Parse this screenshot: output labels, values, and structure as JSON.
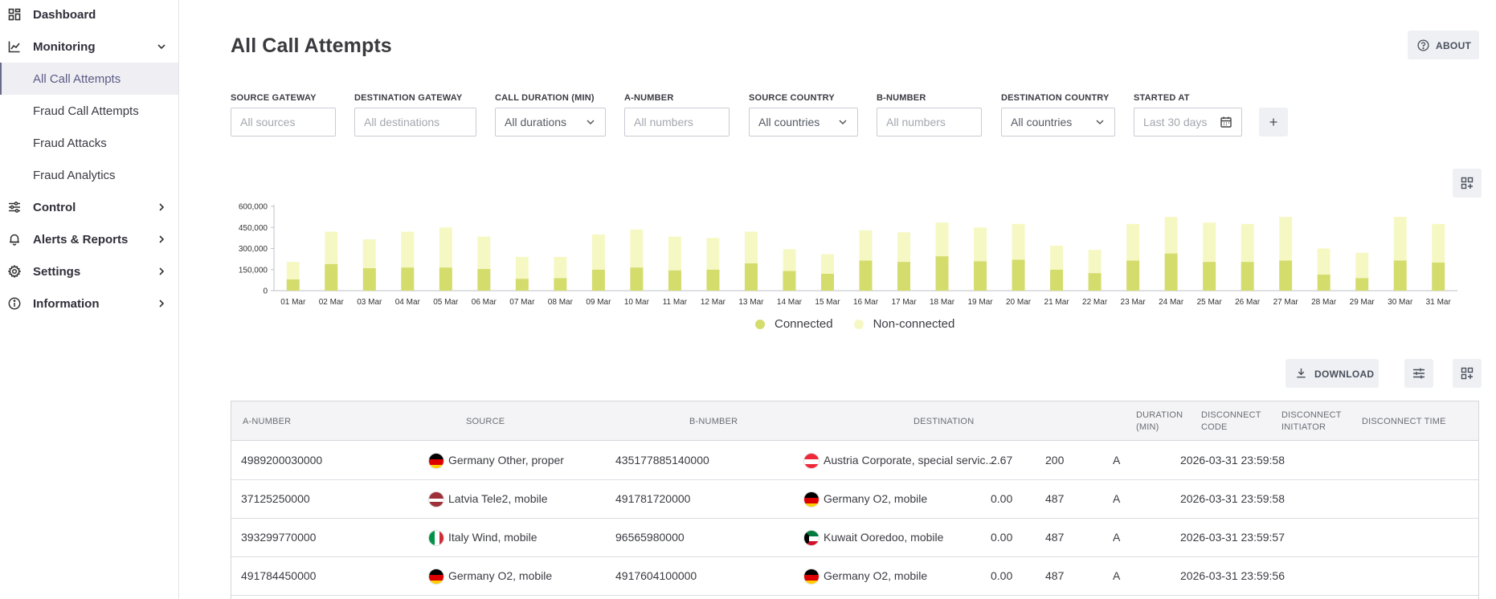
{
  "sidebar": {
    "items": [
      {
        "label": "Dashboard",
        "icon": "dashboard-icon"
      },
      {
        "label": "Monitoring",
        "icon": "monitoring-icon",
        "expanded": true,
        "children": [
          "All Call Attempts",
          "Fraud Call Attempts",
          "Fraud Attacks",
          "Fraud Analytics"
        ],
        "active_child": "All Call Attempts"
      },
      {
        "label": "Control",
        "icon": "sliders-icon"
      },
      {
        "label": "Alerts & Reports",
        "icon": "bell-icon"
      },
      {
        "label": "Settings",
        "icon": "gear-icon"
      },
      {
        "label": "Information",
        "icon": "info-icon"
      }
    ]
  },
  "header": {
    "title": "All Call Attempts",
    "about_label": "ABOUT"
  },
  "filters": {
    "source_gateway": {
      "label": "SOURCE GATEWAY",
      "placeholder": "All sources"
    },
    "destination_gateway": {
      "label": "DESTINATION GATEWAY",
      "placeholder": "All destinations"
    },
    "call_duration": {
      "label": "CALL DURATION (MIN)",
      "value": "All durations"
    },
    "a_number": {
      "label": "A-NUMBER",
      "placeholder": "All numbers"
    },
    "source_country": {
      "label": "SOURCE COUNTRY",
      "value": "All countries"
    },
    "b_number": {
      "label": "B-NUMBER",
      "placeholder": "All numbers"
    },
    "destination_country": {
      "label": "DESTINATION COUNTRY",
      "value": "All countries"
    },
    "started_at": {
      "label": "STARTED AT",
      "value": "Last 30 days"
    }
  },
  "chart_data": {
    "type": "bar",
    "stacked": true,
    "categories": [
      "01 Mar",
      "02 Mar",
      "03 Mar",
      "04 Mar",
      "05 Mar",
      "06 Mar",
      "07 Mar",
      "08 Mar",
      "09 Mar",
      "10 Mar",
      "11 Mar",
      "12 Mar",
      "13 Mar",
      "14 Mar",
      "15 Mar",
      "16 Mar",
      "17 Mar",
      "18 Mar",
      "19 Mar",
      "20 Mar",
      "21 Mar",
      "22 Mar",
      "23 Mar",
      "24 Mar",
      "25 Mar",
      "26 Mar",
      "27 Mar",
      "28 Mar",
      "29 Mar",
      "30 Mar",
      "31 Mar"
    ],
    "series": [
      {
        "name": "Connected",
        "color": "#d4dc6c",
        "values": [
          80000,
          190000,
          160000,
          165000,
          165000,
          155000,
          85000,
          90000,
          150000,
          165000,
          145000,
          150000,
          195000,
          140000,
          120000,
          215000,
          205000,
          245000,
          210000,
          220000,
          150000,
          125000,
          215000,
          265000,
          205000,
          205000,
          215000,
          115000,
          90000,
          215000,
          200000
        ]
      },
      {
        "name": "Non-connected",
        "color": "#f6f8c4",
        "values": [
          125000,
          230000,
          205000,
          255000,
          285000,
          230000,
          155000,
          150000,
          250000,
          270000,
          240000,
          225000,
          225000,
          155000,
          140000,
          215000,
          210000,
          240000,
          240000,
          255000,
          170000,
          165000,
          260000,
          260000,
          280000,
          270000,
          310000,
          185000,
          180000,
          310000,
          275000
        ]
      }
    ],
    "yticks": [
      "0",
      "150,000",
      "300,000",
      "450,000",
      "600,000"
    ],
    "ylim": [
      0,
      600000
    ],
    "legend_position": "bottom-center",
    "grid": false
  },
  "toolbar": {
    "download_label": "DOWNLOAD"
  },
  "table": {
    "columns": [
      "A-NUMBER",
      "SOURCE",
      "B-NUMBER",
      "DESTINATION",
      "DURATION (MIN)",
      "DISCONNECT CODE",
      "DISCONNECT INITIATOR",
      "DISCONNECT TIME"
    ],
    "rows": [
      {
        "a_number": "4989200030000",
        "source_flag": "de",
        "source": "Germany Other, proper",
        "b_number": "435177885140000",
        "dest_flag": "at",
        "destination": "Austria Corporate, special servic...",
        "duration": "2.67",
        "code": "200",
        "initiator": "A",
        "time": "2026-03-31 23:59:58"
      },
      {
        "a_number": "37125250000",
        "source_flag": "lv",
        "source": "Latvia Tele2, mobile",
        "b_number": "491781720000",
        "dest_flag": "de",
        "destination": "Germany O2, mobile",
        "duration": "0.00",
        "code": "487",
        "initiator": "A",
        "time": "2026-03-31 23:59:58"
      },
      {
        "a_number": "393299770000",
        "source_flag": "it",
        "source": "Italy Wind, mobile",
        "b_number": "96565980000",
        "dest_flag": "kw",
        "destination": "Kuwait Ooredoo, mobile",
        "duration": "0.00",
        "code": "487",
        "initiator": "A",
        "time": "2026-03-31 23:59:57"
      },
      {
        "a_number": "491784450000",
        "source_flag": "de",
        "source": "Germany O2, mobile",
        "b_number": "4917604100000",
        "dest_flag": "de",
        "destination": "Germany O2, mobile",
        "duration": "0.00",
        "code": "487",
        "initiator": "A",
        "time": "2026-03-31 23:59:56"
      }
    ]
  }
}
